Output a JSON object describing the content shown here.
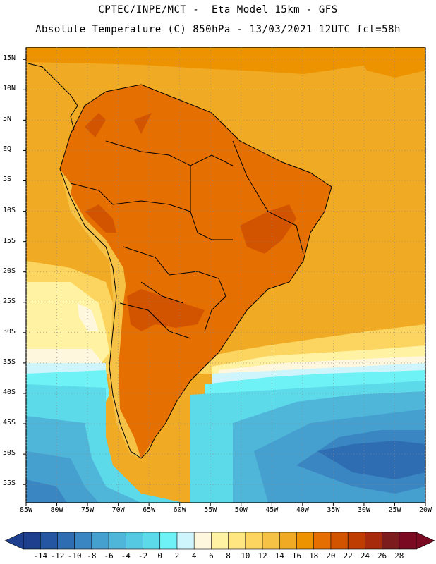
{
  "header": {
    "line1": "CPTEC/INPE/MCT -  Eta Model 15km - GFS",
    "line2": "Absolute Temperature (C) 850hPa - 13/03/2021 12UTC fct=58h"
  },
  "axes": {
    "lat_labels": [
      "15N",
      "10N",
      "5N",
      "EQ",
      "5S",
      "10S",
      "15S",
      "20S",
      "25S",
      "30S",
      "35S",
      "40S",
      "45S",
      "50S",
      "55S"
    ],
    "lat_values": [
      15,
      10,
      5,
      0,
      -5,
      -10,
      -15,
      -20,
      -25,
      -30,
      -35,
      -40,
      -45,
      -50,
      -55
    ],
    "lon_labels": [
      "85W",
      "80W",
      "75W",
      "70W",
      "65W",
      "60W",
      "55W",
      "50W",
      "45W",
      "40W",
      "35W",
      "30W",
      "25W",
      "20W"
    ],
    "lon_values": [
      -85,
      -80,
      -75,
      -70,
      -65,
      -60,
      -55,
      -50,
      -45,
      -40,
      -35,
      -30,
      -25,
      -20
    ],
    "lon_range": [
      -85,
      -20
    ],
    "lat_range": [
      -58,
      17
    ]
  },
  "colorbar": {
    "labels": [
      "-14",
      "-12",
      "-10",
      "-8",
      "-6",
      "-4",
      "-2",
      "0",
      "2",
      "4",
      "6",
      "8",
      "10",
      "12",
      "14",
      "16",
      "18",
      "20",
      "22",
      "24",
      "26",
      "28"
    ],
    "values": [
      -14,
      -12,
      -10,
      -8,
      -6,
      -4,
      -2,
      0,
      2,
      4,
      6,
      8,
      10,
      12,
      14,
      16,
      18,
      20,
      22,
      24,
      26,
      28
    ],
    "colors": [
      "#1d3f8e",
      "#2456a1",
      "#2f6db3",
      "#3a86c2",
      "#46a0cf",
      "#4fb6d9",
      "#55c8e2",
      "#5cdaea",
      "#6ef2f6",
      "#cdf5fb",
      "#fff7dd",
      "#fff3a3",
      "#ffe680",
      "#fbd560",
      "#f5c246",
      "#f0aa24",
      "#ee9300",
      "#e56f00",
      "#d35400",
      "#bf3d00",
      "#a82a0c",
      "#7d1c1c",
      "#7a0a22"
    ],
    "under_color": "#1d3f8e",
    "over_color": "#7a0a22"
  },
  "map_field": {
    "variable": "Absolute Temperature (C)",
    "level": "850hPa",
    "colors": {
      "ocean_tropical": "#f0aa24",
      "ocean_warm": "#ee9300",
      "continent_hot": "#e56f00",
      "continent_hottest": "#d35400",
      "andes_cool": "#f5c246",
      "subtropic_yellow": "#fbd560",
      "pale_yellow": "#fff3a3",
      "cream": "#fff7dd",
      "pale_cyan": "#cdf5fb",
      "cyan": "#6ef2f6",
      "light_blue": "#5cdaea",
      "mid_blue": "#4fb6d9",
      "blue": "#46a0cf",
      "deep_blue": "#3a86c2",
      "deeper_blue": "#2f6db3"
    }
  }
}
